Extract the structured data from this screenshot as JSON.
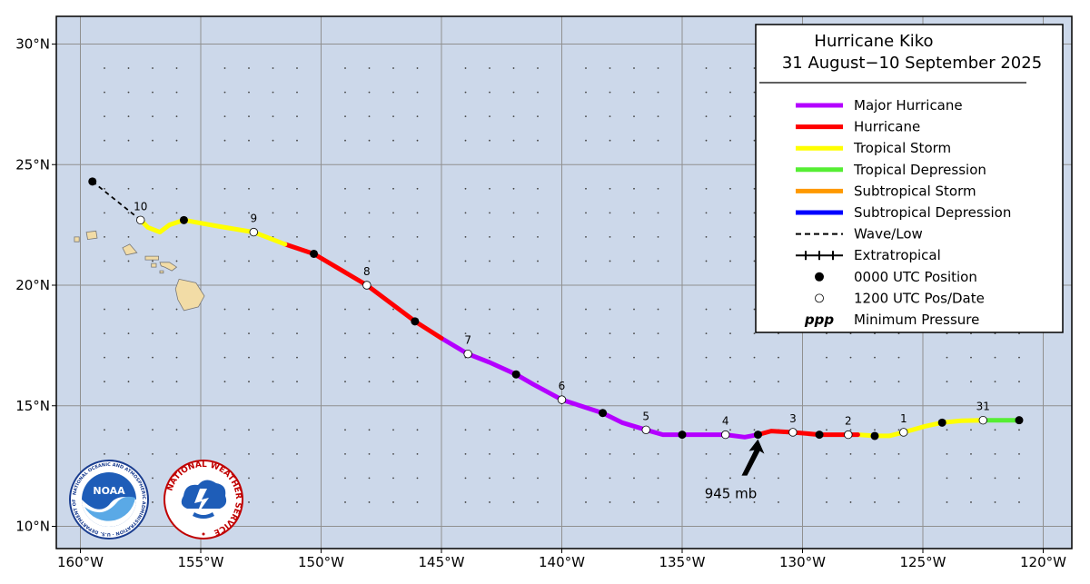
{
  "map": {
    "lon_range": [
      -161,
      -119
    ],
    "lat_range": [
      9.5,
      31
    ],
    "lon_ticks": [
      {
        "value": -160,
        "label": "160°W"
      },
      {
        "value": -155,
        "label": "155°W"
      },
      {
        "value": -150,
        "label": "150°W"
      },
      {
        "value": -145,
        "label": "145°W"
      },
      {
        "value": -140,
        "label": "140°W"
      },
      {
        "value": -135,
        "label": "135°W"
      },
      {
        "value": -130,
        "label": "130°W"
      },
      {
        "value": -125,
        "label": "125°W"
      },
      {
        "value": -120,
        "label": "120°W"
      }
    ],
    "lat_ticks": [
      {
        "value": 10,
        "label": "10°N"
      },
      {
        "value": 15,
        "label": "15°N"
      },
      {
        "value": 20,
        "label": "20°N"
      },
      {
        "value": 25,
        "label": "25°N"
      },
      {
        "value": 30,
        "label": "30°N"
      }
    ],
    "colors": {
      "ocean": "#ccd8ea",
      "land": "#f2dca6",
      "grid": "#909090",
      "major": "#b400ff",
      "hurricane": "#ff0000",
      "ts": "#ffff00",
      "td": "#55ee33",
      "sts": "#ff9900",
      "sd": "#0000ff"
    }
  },
  "legend": {
    "title": "Hurricane Kiko",
    "dates": "31 August−10 September 2025",
    "items": [
      {
        "label": "Major Hurricane",
        "style": "major"
      },
      {
        "label": "Hurricane",
        "style": "hurricane"
      },
      {
        "label": "Tropical Storm",
        "style": "ts"
      },
      {
        "label": "Tropical Depression",
        "style": "td"
      },
      {
        "label": "Subtropical Storm",
        "style": "sts"
      },
      {
        "label": "Subtropical Depression",
        "style": "sd"
      },
      {
        "label": "Wave/Low",
        "style": "dash"
      },
      {
        "label": "Extratropical",
        "style": "plus"
      },
      {
        "label": "0000 UTC Position",
        "style": "black-dot"
      },
      {
        "label": "1200 UTC Pos/Date",
        "style": "white-dot"
      },
      {
        "label": "Minimum Pressure",
        "style": "ppp",
        "symbol": "ppp"
      }
    ]
  },
  "track": [
    {
      "status": "td",
      "points": [
        [
          -121.0,
          14.4
        ],
        [
          -122.5,
          14.4
        ]
      ]
    },
    {
      "status": "ts",
      "points": [
        [
          -122.5,
          14.4
        ],
        [
          -123.4,
          14.38
        ],
        [
          -124.2,
          14.3
        ],
        [
          -124.9,
          14.15
        ],
        [
          -125.8,
          13.9
        ],
        [
          -126.4,
          13.75
        ],
        [
          -127.0,
          13.75
        ],
        [
          -127.7,
          13.8
        ]
      ]
    },
    {
      "status": "hurricane",
      "points": [
        [
          -127.7,
          13.8
        ],
        [
          -128.1,
          13.8
        ],
        [
          -129.3,
          13.8
        ],
        [
          -130.4,
          13.9
        ],
        [
          -131.3,
          13.95
        ],
        [
          -131.85,
          13.8
        ]
      ]
    },
    {
      "status": "major",
      "points": [
        [
          -131.85,
          13.8
        ],
        [
          -132.4,
          13.7
        ],
        [
          -133.2,
          13.8
        ],
        [
          -135.0,
          13.8
        ],
        [
          -135.8,
          13.8
        ],
        [
          -136.5,
          14.0
        ],
        [
          -137.5,
          14.3
        ],
        [
          -138.3,
          14.7
        ],
        [
          -140.0,
          15.25
        ],
        [
          -141.2,
          15.9
        ],
        [
          -141.9,
          16.3
        ],
        [
          -143.0,
          16.8
        ],
        [
          -143.9,
          17.15
        ],
        [
          -145.0,
          17.8
        ]
      ]
    },
    {
      "status": "hurricane",
      "points": [
        [
          -145.0,
          17.8
        ],
        [
          -146.1,
          18.5
        ],
        [
          -148.1,
          20.0
        ],
        [
          -150.3,
          21.3
        ],
        [
          -151.5,
          21.7
        ]
      ]
    },
    {
      "status": "ts",
      "points": [
        [
          -151.5,
          21.7
        ],
        [
          -152.8,
          22.2
        ],
        [
          -154.3,
          22.45
        ],
        [
          -155.7,
          22.7
        ],
        [
          -156.3,
          22.5
        ],
        [
          -156.7,
          22.2
        ],
        [
          -157.2,
          22.4
        ],
        [
          -157.5,
          22.7
        ]
      ]
    },
    {
      "status": "dash",
      "points": [
        [
          -157.5,
          22.7
        ],
        [
          -159.5,
          24.3
        ]
      ]
    }
  ],
  "positions": [
    {
      "kind": "black",
      "lon": -121.0,
      "lat": 14.4
    },
    {
      "kind": "white",
      "lon": -122.5,
      "lat": 14.4,
      "date": "31"
    },
    {
      "kind": "black",
      "lon": -124.2,
      "lat": 14.3
    },
    {
      "kind": "white",
      "lon": -125.8,
      "lat": 13.9,
      "date": "1"
    },
    {
      "kind": "black",
      "lon": -127.0,
      "lat": 13.75
    },
    {
      "kind": "white",
      "lon": -128.1,
      "lat": 13.8,
      "date": "2"
    },
    {
      "kind": "black",
      "lon": -129.3,
      "lat": 13.8
    },
    {
      "kind": "white",
      "lon": -130.4,
      "lat": 13.9,
      "date": "3"
    },
    {
      "kind": "black",
      "lon": -131.85,
      "lat": 13.8
    },
    {
      "kind": "white",
      "lon": -133.2,
      "lat": 13.8,
      "date": "4"
    },
    {
      "kind": "black",
      "lon": -135.0,
      "lat": 13.8
    },
    {
      "kind": "white",
      "lon": -136.5,
      "lat": 14.0,
      "date": "5"
    },
    {
      "kind": "black",
      "lon": -138.3,
      "lat": 14.7
    },
    {
      "kind": "white",
      "lon": -140.0,
      "lat": 15.25,
      "date": "6"
    },
    {
      "kind": "black",
      "lon": -141.9,
      "lat": 16.3
    },
    {
      "kind": "white",
      "lon": -143.9,
      "lat": 17.15,
      "date": "7"
    },
    {
      "kind": "black",
      "lon": -146.1,
      "lat": 18.5
    },
    {
      "kind": "white",
      "lon": -148.1,
      "lat": 20.0,
      "date": "8"
    },
    {
      "kind": "black",
      "lon": -150.3,
      "lat": 21.3
    },
    {
      "kind": "white",
      "lon": -152.8,
      "lat": 22.2,
      "date": "9"
    },
    {
      "kind": "black",
      "lon": -155.7,
      "lat": 22.7
    },
    {
      "kind": "white",
      "lon": -157.5,
      "lat": 22.7,
      "date": "10"
    },
    {
      "kind": "black",
      "lon": -159.5,
      "lat": 24.3
    }
  ],
  "min_pressure": {
    "label": "945 mb",
    "lon": -131.85,
    "lat": 13.8
  },
  "islands": [
    {
      "name": "Hawaii",
      "points": [
        [
          -155.9,
          20.25
        ],
        [
          -155.2,
          20.1
        ],
        [
          -154.85,
          19.55
        ],
        [
          -155.1,
          19.1
        ],
        [
          -155.7,
          18.95
        ],
        [
          -155.95,
          19.4
        ],
        [
          -156.05,
          19.85
        ]
      ]
    },
    {
      "name": "Maui",
      "points": [
        [
          -156.7,
          20.95
        ],
        [
          -156.3,
          20.95
        ],
        [
          -156.0,
          20.75
        ],
        [
          -156.2,
          20.6
        ],
        [
          -156.5,
          20.75
        ],
        [
          -156.65,
          20.8
        ]
      ]
    },
    {
      "name": "Lanai",
      "points": [
        [
          -157.05,
          20.9
        ],
        [
          -156.85,
          20.9
        ],
        [
          -156.85,
          20.75
        ],
        [
          -157.05,
          20.75
        ]
      ]
    },
    {
      "name": "Kahoolawe",
      "points": [
        [
          -156.7,
          20.6
        ],
        [
          -156.55,
          20.6
        ],
        [
          -156.55,
          20.5
        ],
        [
          -156.7,
          20.5
        ]
      ]
    },
    {
      "name": "Molokai",
      "points": [
        [
          -157.3,
          21.2
        ],
        [
          -156.75,
          21.2
        ],
        [
          -156.75,
          21.05
        ],
        [
          -157.3,
          21.05
        ]
      ]
    },
    {
      "name": "Oahu",
      "points": [
        [
          -158.25,
          21.55
        ],
        [
          -157.95,
          21.7
        ],
        [
          -157.65,
          21.35
        ],
        [
          -158.1,
          21.25
        ]
      ]
    },
    {
      "name": "Kauai",
      "points": [
        [
          -159.75,
          22.2
        ],
        [
          -159.35,
          22.25
        ],
        [
          -159.3,
          21.95
        ],
        [
          -159.7,
          21.9
        ]
      ]
    },
    {
      "name": "Niihau",
      "points": [
        [
          -160.25,
          22.0
        ],
        [
          -160.05,
          22.0
        ],
        [
          -160.05,
          21.8
        ],
        [
          -160.25,
          21.8
        ]
      ]
    }
  ],
  "logos": {
    "noaa": {
      "text": "NOAA",
      "ring": "NATIONAL OCEANIC AND ATMOSPHERIC ADMINISTRATION · U.S. DEPARTMENT OF COMMERCE"
    },
    "nws": {
      "ring": "NATIONAL WEATHER SERVICE"
    }
  }
}
